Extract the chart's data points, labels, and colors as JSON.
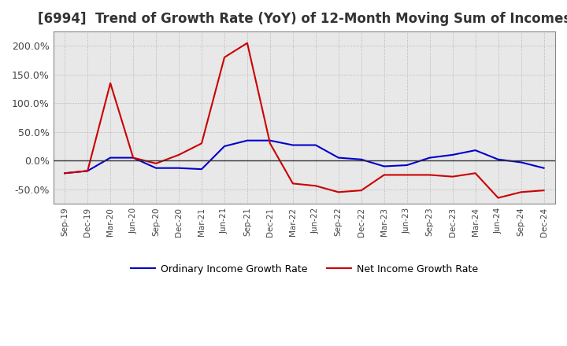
{
  "title": "[6994]  Trend of Growth Rate (YoY) of 12-Month Moving Sum of Incomes",
  "title_fontsize": 12,
  "legend_labels": [
    "Ordinary Income Growth Rate",
    "Net Income Growth Rate"
  ],
  "line_colors": [
    "#0000cc",
    "#cc0000"
  ],
  "background_color": "#ffffff",
  "plot_bg_color": "#e8e8e8",
  "ordinary_values": [
    -22,
    -18,
    5,
    5,
    -13,
    -13,
    -15,
    25,
    35,
    35,
    27,
    27,
    5,
    2,
    -10,
    -8,
    5,
    10,
    18,
    2,
    -3,
    -13
  ],
  "net_values": [
    -22,
    -18,
    135,
    5,
    -5,
    10,
    30,
    180,
    205,
    30,
    -40,
    -44,
    -55,
    -52,
    -25,
    -25,
    -25,
    -28,
    -22,
    -65,
    -55,
    -52
  ],
  "xtick_labels": [
    "Sep-19",
    "Dec-19",
    "Mar-20",
    "Jun-20",
    "Sep-20",
    "Dec-20",
    "Mar-21",
    "Jun-21",
    "Sep-21",
    "Dec-21",
    "Mar-22",
    "Jun-22",
    "Sep-22",
    "Dec-22",
    "Mar-23",
    "Jun-23",
    "Sep-23",
    "Dec-23",
    "Mar-24",
    "Jun-24",
    "Sep-24",
    "Dec-24"
  ],
  "ylim": [
    -75,
    225
  ],
  "yticks": [
    -50,
    0,
    50,
    100,
    150,
    200
  ],
  "ytick_labels": [
    "-50.0%",
    "0.0%",
    "50.0%",
    "100.0%",
    "150.0%",
    "200.0%"
  ]
}
